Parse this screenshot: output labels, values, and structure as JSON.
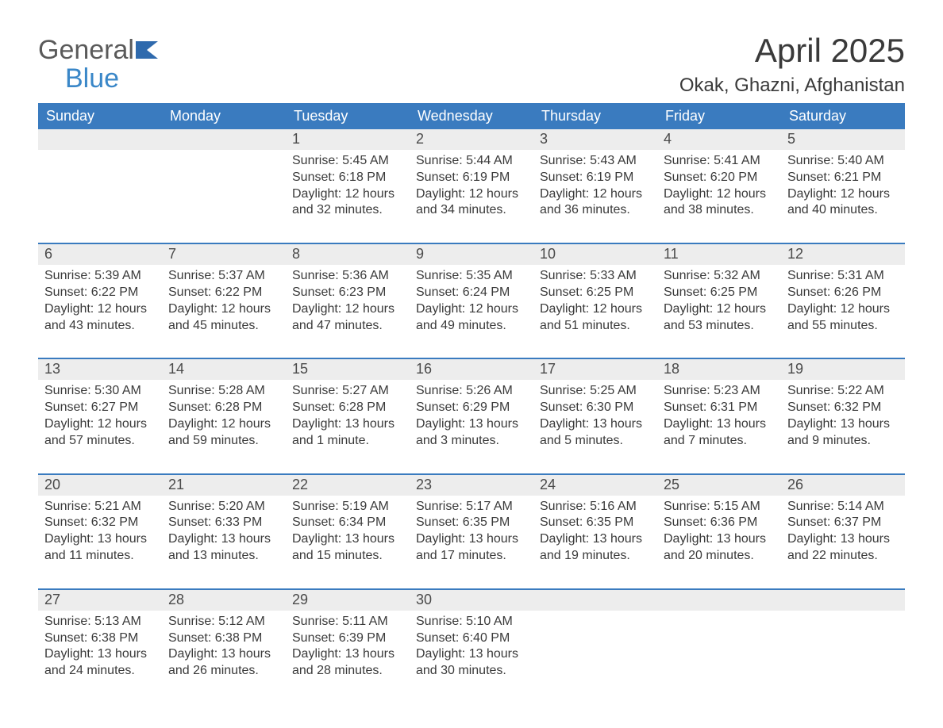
{
  "logo": {
    "general": "General",
    "blue": "Blue"
  },
  "title": "April 2025",
  "location": "Okak, Ghazni, Afghanistan",
  "colors": {
    "header_bg": "#3a7bbf",
    "header_fg": "#ffffff",
    "daynum_bg": "#ededed",
    "row_divider": "#3a7bbf",
    "body_text": "#3a3a3a",
    "logo_general": "#5a5a5a",
    "logo_blue": "#3a87c8",
    "logo_shape": "#2f6aad"
  },
  "day_headers": [
    "Sunday",
    "Monday",
    "Tuesday",
    "Wednesday",
    "Thursday",
    "Friday",
    "Saturday"
  ],
  "weeks": [
    [
      {
        "n": "",
        "sunrise": "",
        "sunset": "",
        "daylight": ""
      },
      {
        "n": "",
        "sunrise": "",
        "sunset": "",
        "daylight": ""
      },
      {
        "n": "1",
        "sunrise": "Sunrise: 5:45 AM",
        "sunset": "Sunset: 6:18 PM",
        "daylight": "Daylight: 12 hours and 32 minutes."
      },
      {
        "n": "2",
        "sunrise": "Sunrise: 5:44 AM",
        "sunset": "Sunset: 6:19 PM",
        "daylight": "Daylight: 12 hours and 34 minutes."
      },
      {
        "n": "3",
        "sunrise": "Sunrise: 5:43 AM",
        "sunset": "Sunset: 6:19 PM",
        "daylight": "Daylight: 12 hours and 36 minutes."
      },
      {
        "n": "4",
        "sunrise": "Sunrise: 5:41 AM",
        "sunset": "Sunset: 6:20 PM",
        "daylight": "Daylight: 12 hours and 38 minutes."
      },
      {
        "n": "5",
        "sunrise": "Sunrise: 5:40 AM",
        "sunset": "Sunset: 6:21 PM",
        "daylight": "Daylight: 12 hours and 40 minutes."
      }
    ],
    [
      {
        "n": "6",
        "sunrise": "Sunrise: 5:39 AM",
        "sunset": "Sunset: 6:22 PM",
        "daylight": "Daylight: 12 hours and 43 minutes."
      },
      {
        "n": "7",
        "sunrise": "Sunrise: 5:37 AM",
        "sunset": "Sunset: 6:22 PM",
        "daylight": "Daylight: 12 hours and 45 minutes."
      },
      {
        "n": "8",
        "sunrise": "Sunrise: 5:36 AM",
        "sunset": "Sunset: 6:23 PM",
        "daylight": "Daylight: 12 hours and 47 minutes."
      },
      {
        "n": "9",
        "sunrise": "Sunrise: 5:35 AM",
        "sunset": "Sunset: 6:24 PM",
        "daylight": "Daylight: 12 hours and 49 minutes."
      },
      {
        "n": "10",
        "sunrise": "Sunrise: 5:33 AM",
        "sunset": "Sunset: 6:25 PM",
        "daylight": "Daylight: 12 hours and 51 minutes."
      },
      {
        "n": "11",
        "sunrise": "Sunrise: 5:32 AM",
        "sunset": "Sunset: 6:25 PM",
        "daylight": "Daylight: 12 hours and 53 minutes."
      },
      {
        "n": "12",
        "sunrise": "Sunrise: 5:31 AM",
        "sunset": "Sunset: 6:26 PM",
        "daylight": "Daylight: 12 hours and 55 minutes."
      }
    ],
    [
      {
        "n": "13",
        "sunrise": "Sunrise: 5:30 AM",
        "sunset": "Sunset: 6:27 PM",
        "daylight": "Daylight: 12 hours and 57 minutes."
      },
      {
        "n": "14",
        "sunrise": "Sunrise: 5:28 AM",
        "sunset": "Sunset: 6:28 PM",
        "daylight": "Daylight: 12 hours and 59 minutes."
      },
      {
        "n": "15",
        "sunrise": "Sunrise: 5:27 AM",
        "sunset": "Sunset: 6:28 PM",
        "daylight": "Daylight: 13 hours and 1 minute."
      },
      {
        "n": "16",
        "sunrise": "Sunrise: 5:26 AM",
        "sunset": "Sunset: 6:29 PM",
        "daylight": "Daylight: 13 hours and 3 minutes."
      },
      {
        "n": "17",
        "sunrise": "Sunrise: 5:25 AM",
        "sunset": "Sunset: 6:30 PM",
        "daylight": "Daylight: 13 hours and 5 minutes."
      },
      {
        "n": "18",
        "sunrise": "Sunrise: 5:23 AM",
        "sunset": "Sunset: 6:31 PM",
        "daylight": "Daylight: 13 hours and 7 minutes."
      },
      {
        "n": "19",
        "sunrise": "Sunrise: 5:22 AM",
        "sunset": "Sunset: 6:32 PM",
        "daylight": "Daylight: 13 hours and 9 minutes."
      }
    ],
    [
      {
        "n": "20",
        "sunrise": "Sunrise: 5:21 AM",
        "sunset": "Sunset: 6:32 PM",
        "daylight": "Daylight: 13 hours and 11 minutes."
      },
      {
        "n": "21",
        "sunrise": "Sunrise: 5:20 AM",
        "sunset": "Sunset: 6:33 PM",
        "daylight": "Daylight: 13 hours and 13 minutes."
      },
      {
        "n": "22",
        "sunrise": "Sunrise: 5:19 AM",
        "sunset": "Sunset: 6:34 PM",
        "daylight": "Daylight: 13 hours and 15 minutes."
      },
      {
        "n": "23",
        "sunrise": "Sunrise: 5:17 AM",
        "sunset": "Sunset: 6:35 PM",
        "daylight": "Daylight: 13 hours and 17 minutes."
      },
      {
        "n": "24",
        "sunrise": "Sunrise: 5:16 AM",
        "sunset": "Sunset: 6:35 PM",
        "daylight": "Daylight: 13 hours and 19 minutes."
      },
      {
        "n": "25",
        "sunrise": "Sunrise: 5:15 AM",
        "sunset": "Sunset: 6:36 PM",
        "daylight": "Daylight: 13 hours and 20 minutes."
      },
      {
        "n": "26",
        "sunrise": "Sunrise: 5:14 AM",
        "sunset": "Sunset: 6:37 PM",
        "daylight": "Daylight: 13 hours and 22 minutes."
      }
    ],
    [
      {
        "n": "27",
        "sunrise": "Sunrise: 5:13 AM",
        "sunset": "Sunset: 6:38 PM",
        "daylight": "Daylight: 13 hours and 24 minutes."
      },
      {
        "n": "28",
        "sunrise": "Sunrise: 5:12 AM",
        "sunset": "Sunset: 6:38 PM",
        "daylight": "Daylight: 13 hours and 26 minutes."
      },
      {
        "n": "29",
        "sunrise": "Sunrise: 5:11 AM",
        "sunset": "Sunset: 6:39 PM",
        "daylight": "Daylight: 13 hours and 28 minutes."
      },
      {
        "n": "30",
        "sunrise": "Sunrise: 5:10 AM",
        "sunset": "Sunset: 6:40 PM",
        "daylight": "Daylight: 13 hours and 30 minutes."
      },
      {
        "n": "",
        "sunrise": "",
        "sunset": "",
        "daylight": ""
      },
      {
        "n": "",
        "sunrise": "",
        "sunset": "",
        "daylight": ""
      },
      {
        "n": "",
        "sunrise": "",
        "sunset": "",
        "daylight": ""
      }
    ]
  ]
}
